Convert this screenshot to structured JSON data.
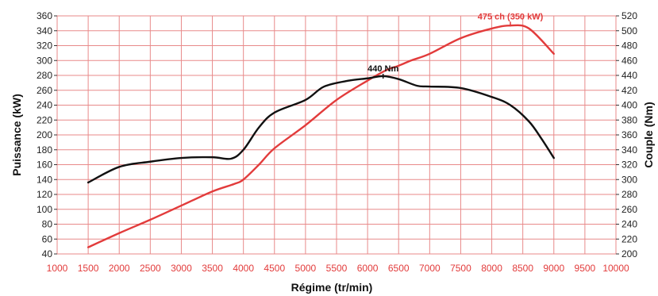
{
  "chart_data": {
    "type": "line",
    "xlabel": "Régime (tr/min)",
    "ylabel_left": "Puissance (kW)",
    "ylabel_right": "Couple (Nm)",
    "x_ticks": [
      1000,
      1500,
      2000,
      2500,
      3000,
      3500,
      4000,
      4500,
      5000,
      5500,
      6000,
      6500,
      7000,
      7500,
      8000,
      8500,
      9000,
      9500,
      10000
    ],
    "xlim": [
      1000,
      10000
    ],
    "left_ticks": [
      40,
      60,
      80,
      100,
      120,
      140,
      160,
      180,
      200,
      220,
      240,
      260,
      280,
      300,
      320,
      340,
      360
    ],
    "ylim_left": [
      40,
      360
    ],
    "right_ticks": [
      200,
      220,
      240,
      260,
      280,
      300,
      320,
      340,
      360,
      380,
      400,
      420,
      440,
      460,
      480,
      500,
      520
    ],
    "ylim_right": [
      200,
      520
    ],
    "grid": true,
    "series": [
      {
        "axis": "left",
        "color": "#e23b3b",
        "x": [
          1500,
          2000,
          2500,
          3000,
          3500,
          3850,
          4000,
          4250,
          4500,
          5000,
          5500,
          6000,
          6300,
          6500,
          6700,
          7000,
          7500,
          8000,
          8300,
          8600,
          9000
        ],
        "y": [
          49,
          68,
          86,
          105,
          124,
          134,
          140,
          160,
          182,
          213,
          247,
          273,
          287,
          293,
          300,
          309,
          330,
          343,
          347,
          343,
          309
        ]
      },
      {
        "axis": "right",
        "color": "#111111",
        "x": [
          1500,
          2000,
          2500,
          3000,
          3500,
          3800,
          4000,
          4250,
          4500,
          5000,
          5300,
          5700,
          6000,
          6250,
          6500,
          6800,
          7000,
          7500,
          8000,
          8300,
          8600,
          8800,
          9000
        ],
        "y": [
          296,
          317,
          324,
          329,
          330,
          328,
          340,
          370,
          390,
          407,
          425,
          433,
          436,
          439,
          435,
          426,
          425,
          423,
          411,
          400,
          378,
          355,
          329
        ]
      }
    ],
    "annotations": [
      {
        "text": "440 Nm",
        "x": 6250,
        "y": 440,
        "axis": "right",
        "color": "#111111"
      },
      {
        "text": "475 ch (350 kW)",
        "x": 8300,
        "y": 350,
        "axis": "left",
        "color": "#e23b3b"
      }
    ]
  }
}
